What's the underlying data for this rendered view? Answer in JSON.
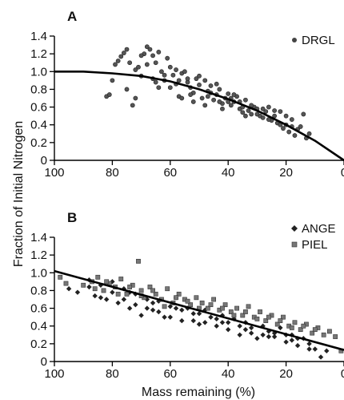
{
  "figure": {
    "ylabel": "Fraction of Initial Nitrogen",
    "xlabel": "Mass remaining (%)"
  },
  "chart_data": [
    {
      "type": "scatter",
      "panel": "A",
      "xlim": [
        100,
        0
      ],
      "ylim": [
        0,
        1.4
      ],
      "x_ticks": [
        100,
        80,
        60,
        40,
        20,
        0
      ],
      "y_ticks": [
        0,
        0.2,
        0.4,
        0.6,
        0.8,
        1.0,
        1.2,
        1.4
      ],
      "legend_position": "top-right",
      "series": [
        {
          "name": "DRGL",
          "marker": "circle",
          "points": [
            [
              82,
              0.72
            ],
            [
              81,
              0.74
            ],
            [
              80,
              0.9
            ],
            [
              79,
              1.08
            ],
            [
              78,
              1.12
            ],
            [
              77,
              1.17
            ],
            [
              76,
              1.21
            ],
            [
              75,
              1.25
            ],
            [
              75,
              0.8
            ],
            [
              74,
              1.1
            ],
            [
              73,
              0.62
            ],
            [
              72,
              0.7
            ],
            [
              71,
              1.05
            ],
            [
              70,
              0.95
            ],
            [
              69,
              1.2
            ],
            [
              68,
              1.28
            ],
            [
              67,
              1.25
            ],
            [
              66,
              1.18
            ],
            [
              65,
              1.1
            ],
            [
              65,
              0.88
            ],
            [
              64,
              1.22
            ],
            [
              64,
              0.82
            ],
            [
              63,
              1.0
            ],
            [
              62,
              0.9
            ],
            [
              61,
              1.15
            ],
            [
              60,
              1.05
            ],
            [
              59,
              0.96
            ],
            [
              58,
              0.86
            ],
            [
              57,
              0.72
            ],
            [
              56,
              0.98
            ],
            [
              55,
              1.0
            ],
            [
              54,
              0.88
            ],
            [
              53,
              0.82
            ],
            [
              52,
              0.76
            ],
            [
              51,
              0.92
            ],
            [
              50,
              0.85
            ],
            [
              49,
              0.7
            ],
            [
              48,
              0.9
            ],
            [
              47,
              0.78
            ],
            [
              46,
              0.84
            ],
            [
              45,
              0.68
            ],
            [
              44,
              0.74
            ],
            [
              43,
              0.8
            ],
            [
              42,
              0.64
            ],
            [
              41,
              0.7
            ],
            [
              40,
              0.75
            ],
            [
              39,
              0.62
            ],
            [
              38,
              0.66
            ],
            [
              37,
              0.72
            ],
            [
              36,
              0.58
            ],
            [
              35,
              0.6
            ],
            [
              34,
              0.68
            ],
            [
              33,
              0.56
            ],
            [
              32,
              0.52
            ],
            [
              31,
              0.6
            ],
            [
              30,
              0.58
            ],
            [
              29,
              0.5
            ],
            [
              28,
              0.48
            ],
            [
              27,
              0.55
            ],
            [
              26,
              0.6
            ],
            [
              25,
              0.45
            ],
            [
              24,
              0.5
            ],
            [
              23,
              0.42
            ],
            [
              22,
              0.55
            ],
            [
              21,
              0.36
            ],
            [
              20,
              0.4
            ],
            [
              19,
              0.32
            ],
            [
              18,
              0.46
            ],
            [
              17,
              0.28
            ],
            [
              16,
              0.35
            ],
            [
              15,
              0.38
            ],
            [
              14,
              0.52
            ],
            [
              13,
              0.25
            ],
            [
              12,
              0.3
            ],
            [
              60,
              0.82
            ],
            [
              58,
              1.02
            ],
            [
              56,
              0.7
            ],
            [
              54,
              0.92
            ],
            [
              52,
              0.66
            ],
            [
              50,
              0.95
            ],
            [
              48,
              0.62
            ],
            [
              46,
              0.76
            ],
            [
              44,
              0.86
            ],
            [
              42,
              0.58
            ],
            [
              40,
              0.66
            ],
            [
              38,
              0.74
            ],
            [
              36,
              0.66
            ],
            [
              34,
              0.5
            ],
            [
              32,
              0.62
            ],
            [
              30,
              0.52
            ],
            [
              28,
              0.58
            ],
            [
              26,
              0.46
            ],
            [
              24,
              0.56
            ],
            [
              22,
              0.4
            ],
            [
              20,
              0.5
            ],
            [
              18,
              0.38
            ],
            [
              66,
              0.92
            ],
            [
              68,
              1.08
            ],
            [
              70,
              1.18
            ],
            [
              72,
              1.02
            ],
            [
              62,
              0.96
            ],
            [
              57,
              0.9
            ],
            [
              53,
              0.74
            ],
            [
              47,
              0.72
            ],
            [
              43,
              0.66
            ],
            [
              39,
              0.7
            ],
            [
              35,
              0.54
            ]
          ]
        }
      ],
      "fit_line": {
        "type": "curve",
        "x": [
          100,
          90,
          80,
          70,
          60,
          50,
          40,
          30,
          20,
          10,
          0
        ],
        "y": [
          1.0,
          1.0,
          0.98,
          0.95,
          0.89,
          0.8,
          0.69,
          0.56,
          0.4,
          0.22,
          0.0
        ]
      }
    },
    {
      "type": "scatter",
      "panel": "B",
      "xlim": [
        100,
        0
      ],
      "ylim": [
        0,
        1.4
      ],
      "x_ticks": [
        100,
        80,
        60,
        40,
        20,
        0
      ],
      "y_ticks": [
        0,
        0.2,
        0.4,
        0.6,
        0.8,
        1.0,
        1.2,
        1.4
      ],
      "legend_position": "top-right",
      "series": [
        {
          "name": "ANGE",
          "marker": "diamond",
          "points": [
            [
              95,
              0.82
            ],
            [
              92,
              0.78
            ],
            [
              88,
              0.92
            ],
            [
              86,
              0.74
            ],
            [
              84,
              0.86
            ],
            [
              82,
              0.7
            ],
            [
              80,
              0.9
            ],
            [
              78,
              0.66
            ],
            [
              76,
              0.82
            ],
            [
              74,
              0.6
            ],
            [
              72,
              0.76
            ],
            [
              70,
              0.52
            ],
            [
              68,
              0.7
            ],
            [
              66,
              0.58
            ],
            [
              64,
              0.68
            ],
            [
              62,
              0.5
            ],
            [
              60,
              0.62
            ],
            [
              58,
              0.72
            ],
            [
              56,
              0.46
            ],
            [
              54,
              0.6
            ],
            [
              52,
              0.54
            ],
            [
              50,
              0.42
            ],
            [
              48,
              0.58
            ],
            [
              46,
              0.5
            ],
            [
              44,
              0.4
            ],
            [
              42,
              0.52
            ],
            [
              40,
              0.36
            ],
            [
              38,
              0.48
            ],
            [
              36,
              0.3
            ],
            [
              34,
              0.44
            ],
            [
              32,
              0.38
            ],
            [
              30,
              0.26
            ],
            [
              28,
              0.4
            ],
            [
              26,
              0.34
            ],
            [
              24,
              0.28
            ],
            [
              22,
              0.38
            ],
            [
              20,
              0.22
            ],
            [
              18,
              0.3
            ],
            [
              16,
              0.18
            ],
            [
              14,
              0.26
            ],
            [
              12,
              0.2
            ],
            [
              10,
              0.14
            ],
            [
              8,
              0.05
            ],
            [
              6,
              0.12
            ],
            [
              88,
              0.84
            ],
            [
              84,
              0.72
            ],
            [
              80,
              0.78
            ],
            [
              76,
              0.7
            ],
            [
              72,
              0.64
            ],
            [
              68,
              0.6
            ],
            [
              64,
              0.56
            ],
            [
              60,
              0.5
            ],
            [
              56,
              0.58
            ],
            [
              52,
              0.46
            ],
            [
              48,
              0.44
            ],
            [
              44,
              0.48
            ],
            [
              40,
              0.44
            ],
            [
              36,
              0.4
            ],
            [
              32,
              0.32
            ],
            [
              28,
              0.3
            ],
            [
              24,
              0.32
            ],
            [
              20,
              0.3
            ],
            [
              16,
              0.26
            ],
            [
              12,
              0.14
            ],
            [
              74,
              0.78
            ],
            [
              66,
              0.66
            ],
            [
              58,
              0.6
            ],
            [
              50,
              0.54
            ],
            [
              42,
              0.44
            ],
            [
              34,
              0.36
            ],
            [
              26,
              0.28
            ],
            [
              18,
              0.24
            ]
          ]
        },
        {
          "name": "PIEL",
          "marker": "square",
          "points": [
            [
              98,
              0.95
            ],
            [
              96,
              0.88
            ],
            [
              90,
              0.86
            ],
            [
              87,
              0.9
            ],
            [
              85,
              0.95
            ],
            [
              83,
              0.8
            ],
            [
              81,
              0.88
            ],
            [
              79,
              0.84
            ],
            [
              77,
              0.93
            ],
            [
              75,
              0.76
            ],
            [
              73,
              0.86
            ],
            [
              71,
              1.13
            ],
            [
              70,
              0.8
            ],
            [
              69,
              0.72
            ],
            [
              67,
              0.84
            ],
            [
              65,
              0.76
            ],
            [
              63,
              0.7
            ],
            [
              61,
              0.82
            ],
            [
              59,
              0.66
            ],
            [
              57,
              0.76
            ],
            [
              55,
              0.7
            ],
            [
              53,
              0.64
            ],
            [
              51,
              0.72
            ],
            [
              49,
              0.66
            ],
            [
              47,
              0.6
            ],
            [
              45,
              0.7
            ],
            [
              43,
              0.58
            ],
            [
              41,
              0.64
            ],
            [
              39,
              0.56
            ],
            [
              37,
              0.6
            ],
            [
              35,
              0.52
            ],
            [
              33,
              0.62
            ],
            [
              31,
              0.5
            ],
            [
              29,
              0.56
            ],
            [
              27,
              0.46
            ],
            [
              25,
              0.52
            ],
            [
              23,
              0.42
            ],
            [
              21,
              0.5
            ],
            [
              19,
              0.4
            ],
            [
              17,
              0.44
            ],
            [
              15,
              0.36
            ],
            [
              13,
              0.42
            ],
            [
              11,
              0.32
            ],
            [
              9,
              0.38
            ],
            [
              7,
              0.3
            ],
            [
              5,
              0.34
            ],
            [
              3,
              0.28
            ],
            [
              1,
              0.12
            ],
            [
              86,
              0.82
            ],
            [
              82,
              0.9
            ],
            [
              78,
              0.76
            ],
            [
              74,
              0.84
            ],
            [
              70,
              0.74
            ],
            [
              66,
              0.8
            ],
            [
              62,
              0.62
            ],
            [
              58,
              0.72
            ],
            [
              54,
              0.68
            ],
            [
              50,
              0.6
            ],
            [
              46,
              0.64
            ],
            [
              42,
              0.6
            ],
            [
              38,
              0.52
            ],
            [
              34,
              0.56
            ],
            [
              30,
              0.48
            ],
            [
              26,
              0.5
            ],
            [
              22,
              0.46
            ],
            [
              18,
              0.38
            ],
            [
              14,
              0.4
            ],
            [
              10,
              0.36
            ]
          ]
        }
      ],
      "fit_line": {
        "type": "linear",
        "x": [
          100,
          0
        ],
        "y": [
          1.02,
          0.13
        ]
      }
    }
  ]
}
